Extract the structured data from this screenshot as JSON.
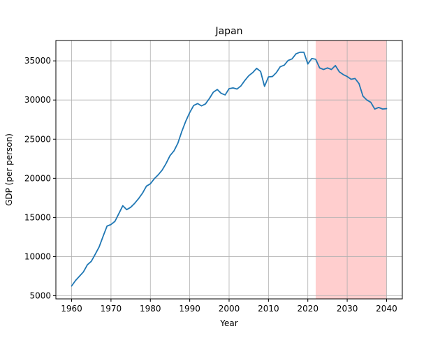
{
  "chart_data": {
    "type": "line",
    "title": "Japan",
    "xlabel": "Year",
    "ylabel": "GDP (per person)",
    "xlim": [
      1956.0,
      2044.0
    ],
    "ylim": [
      4600,
      37600
    ],
    "xticks": [
      1960,
      1970,
      1980,
      1990,
      2000,
      2010,
      2020,
      2030,
      2040
    ],
    "yticks": [
      5000,
      10000,
      15000,
      20000,
      25000,
      30000,
      35000
    ],
    "grid": true,
    "line_color": "#1f77b4",
    "shade_color": "#ff9e9e",
    "shaded_region": {
      "x_start": 2022,
      "x_end": 2040
    },
    "series": [
      {
        "x": [
          1960,
          1961,
          1962,
          1963,
          1964,
          1965,
          1966,
          1967,
          1968,
          1969,
          1970,
          1971,
          1972,
          1973,
          1974,
          1975,
          1976,
          1977,
          1978,
          1979,
          1980,
          1981,
          1982,
          1983,
          1984,
          1985,
          1986,
          1987,
          1988,
          1989,
          1990,
          1991,
          1992,
          1993,
          1994,
          1995,
          1996,
          1997,
          1998,
          1999,
          2000,
          2001,
          2002,
          2003,
          2004,
          2005,
          2006,
          2007,
          2008,
          2009,
          2010,
          2011,
          2012,
          2013,
          2014,
          2015,
          2016,
          2017,
          2018,
          2019,
          2020,
          2021,
          2022,
          2023,
          2024,
          2025,
          2026,
          2027,
          2028,
          2029,
          2030,
          2031,
          2032,
          2033,
          2034,
          2035,
          2036,
          2037,
          2038,
          2039,
          2040
        ],
        "values": [
          6250,
          6950,
          7500,
          8050,
          8950,
          9400,
          10300,
          11250,
          12600,
          13900,
          14100,
          14500,
          15500,
          16500,
          16000,
          16300,
          16800,
          17400,
          18100,
          19000,
          19300,
          19950,
          20450,
          21050,
          21900,
          22900,
          23500,
          24500,
          26000,
          27300,
          28400,
          29300,
          29550,
          29250,
          29500,
          30200,
          31000,
          31350,
          30850,
          30650,
          31450,
          31550,
          31400,
          31800,
          32500,
          33100,
          33500,
          34050,
          33650,
          31750,
          32950,
          33000,
          33500,
          34250,
          34450,
          35050,
          35250,
          35900,
          36100,
          36100,
          34600,
          35300,
          35200,
          34100,
          33900,
          34100,
          33900,
          34400,
          33600,
          33250,
          33000,
          32650,
          32750,
          32100,
          30500,
          30000,
          29700,
          28850,
          29050,
          28850,
          28900
        ]
      }
    ]
  }
}
